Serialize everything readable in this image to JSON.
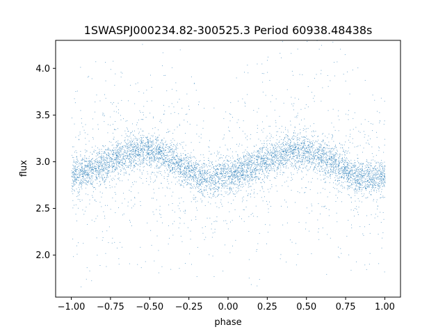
{
  "chart_data": {
    "type": "scatter",
    "title": "1SWASPJ000234.82-300525.3 Period 60938.48438s",
    "xlabel": "phase",
    "ylabel": "flux",
    "xlim": [
      -1.1,
      1.1
    ],
    "ylim": [
      1.55,
      4.3
    ],
    "xticks": [
      -1.0,
      -0.75,
      -0.5,
      -0.25,
      0.0,
      0.25,
      0.5,
      0.75,
      1.0
    ],
    "xtick_labels": [
      "−1.00",
      "−0.75",
      "−0.50",
      "−0.25",
      "0.00",
      "0.25",
      "0.50",
      "0.75",
      "1.00"
    ],
    "yticks": [
      2.0,
      2.5,
      3.0,
      3.5,
      4.0
    ],
    "ytick_labels": [
      "2.0",
      "2.5",
      "3.0",
      "3.5",
      "4.0"
    ],
    "grid": false,
    "legend": "none",
    "point_color": "#1f77b4",
    "series": [
      {
        "trend_phase": [
          -1.0,
          -0.9,
          -0.8,
          -0.7,
          -0.6,
          -0.55,
          -0.5,
          -0.4,
          -0.3,
          -0.2,
          -0.15,
          -0.1,
          0.0,
          0.1,
          0.2,
          0.3,
          0.4,
          0.45,
          0.5,
          0.6,
          0.7,
          0.8,
          0.85,
          0.9,
          1.0
        ],
        "trend_flux": [
          2.86,
          2.9,
          2.96,
          3.05,
          3.12,
          3.13,
          3.12,
          3.05,
          2.96,
          2.86,
          2.83,
          2.82,
          2.86,
          2.92,
          2.98,
          3.05,
          3.12,
          3.13,
          3.12,
          3.05,
          2.96,
          2.86,
          2.83,
          2.82,
          2.86
        ],
        "core_scatter": 0.16,
        "approx_points": 7000
      }
    ]
  }
}
